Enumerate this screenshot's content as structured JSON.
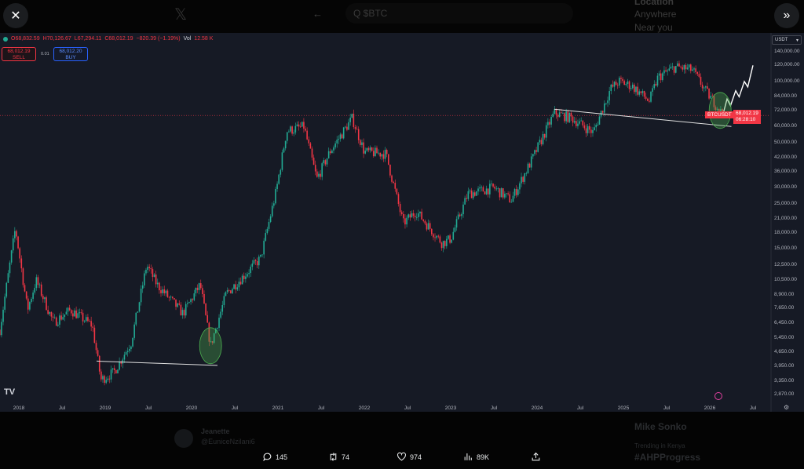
{
  "background": {
    "search": "Q $BTC",
    "location": "Location",
    "anywhere": "Anywhere",
    "near_you": "Near you",
    "user_name": "Jeanette",
    "user_handle": "@EuniceNzilani6",
    "trend_person": "Mike Sonko",
    "trending_label": "Trending in Kenya",
    "trending_tag": "#AHPProgress"
  },
  "chart_header": {
    "o": "O68,832.59",
    "h": "H70,126.67",
    "l": "L67,294.11",
    "c": "C68,012.19",
    "change": "−820.39 (−1.19%)",
    "vol_label": "Vol",
    "vol": "12.58 K"
  },
  "trade": {
    "sell_price": "68,012.19",
    "sell_label": "SELL",
    "spread": "0.01",
    "buy_price": "68,012.20",
    "buy_label": "BUY"
  },
  "currency": "USDT",
  "symbol_tag": "BTCUSDT",
  "price_tag": "68,012.19",
  "countdown": "06:28:10",
  "actions": {
    "replies": "145",
    "reposts": "74",
    "likes": "974",
    "views": "89K"
  },
  "chart_data": {
    "type": "candlestick",
    "symbol": "BTCUSDT",
    "scale": "log",
    "current_price": 68012.19,
    "ylim": [
      2600,
      160000
    ],
    "yticks": [
      140000,
      120000,
      100000,
      84000,
      72000,
      60000,
      50000,
      42000,
      36000,
      30000,
      25000,
      21000,
      18000,
      15000,
      12500,
      10500,
      8900,
      7650,
      6450,
      5450,
      4650,
      3950,
      3350,
      2870
    ],
    "ytick_labels": [
      "140,000.00",
      "120,000.00",
      "100,000.00",
      "84,000.00",
      "72,000.00",
      "60,000.00",
      "50,000.00",
      "42,000.00",
      "36,000.00",
      "30,000.00",
      "25,000.00",
      "21,000.00",
      "18,000.00",
      "15,000.00",
      "12,500.00",
      "10,500.00",
      "8,900.00",
      "7,650.00",
      "6,450.00",
      "5,450.00",
      "4,650.00",
      "3,950.00",
      "3,350.00",
      "2,870.00"
    ],
    "xticks": [
      [
        2018,
        "2018"
      ],
      [
        2018.5,
        "Jul"
      ],
      [
        2019,
        "2019"
      ],
      [
        2019.5,
        "Jul"
      ],
      [
        2020,
        "2020"
      ],
      [
        2020.5,
        "Jul"
      ],
      [
        2021,
        "2021"
      ],
      [
        2021.5,
        "Jul"
      ],
      [
        2022,
        "2022"
      ],
      [
        2022.5,
        "Jul"
      ],
      [
        2023,
        "2023"
      ],
      [
        2023.5,
        "Jul"
      ],
      [
        2024,
        "2024"
      ],
      [
        2024.5,
        "Jul"
      ],
      [
        2025,
        "2025"
      ],
      [
        2025.5,
        "Jul"
      ],
      [
        2026,
        "2026"
      ],
      [
        2026.5,
        "Jul"
      ]
    ],
    "price_path": [
      [
        2017.78,
        6000
      ],
      [
        2017.96,
        19000
      ],
      [
        2018.1,
        7500
      ],
      [
        2018.2,
        10500
      ],
      [
        2018.4,
        6500
      ],
      [
        2018.6,
        7500
      ],
      [
        2018.85,
        6300
      ],
      [
        2018.95,
        3400
      ],
      [
        2019.1,
        3700
      ],
      [
        2019.3,
        5200
      ],
      [
        2019.48,
        12500
      ],
      [
        2019.6,
        10000
      ],
      [
        2019.9,
        7200
      ],
      [
        2020.1,
        10000
      ],
      [
        2020.22,
        5000
      ],
      [
        2020.4,
        9000
      ],
      [
        2020.6,
        11000
      ],
      [
        2020.8,
        13500
      ],
      [
        2020.98,
        29000
      ],
      [
        2021.1,
        57000
      ],
      [
        2021.3,
        60000
      ],
      [
        2021.45,
        33000
      ],
      [
        2021.6,
        45000
      ],
      [
        2021.86,
        66000
      ],
      [
        2022.0,
        45000
      ],
      [
        2022.25,
        44000
      ],
      [
        2022.45,
        20000
      ],
      [
        2022.6,
        23000
      ],
      [
        2022.9,
        16000
      ],
      [
        2023.0,
        16800
      ],
      [
        2023.2,
        28000
      ],
      [
        2023.5,
        30000
      ],
      [
        2023.7,
        26000
      ],
      [
        2023.95,
        42000
      ],
      [
        2024.2,
        70000
      ],
      [
        2024.4,
        66000
      ],
      [
        2024.65,
        56000
      ],
      [
        2024.85,
        92000
      ],
      [
        2024.95,
        100000
      ],
      [
        2025.1,
        95000
      ],
      [
        2025.3,
        80000
      ],
      [
        2025.4,
        105000
      ],
      [
        2025.6,
        118000
      ],
      [
        2025.8,
        114000
      ],
      [
        2025.95,
        90000
      ],
      [
        2026.08,
        76000
      ],
      [
        2026.15,
        68012
      ]
    ],
    "projection": [
      [
        2026.15,
        68012
      ],
      [
        2026.2,
        82000
      ],
      [
        2026.24,
        76000
      ],
      [
        2026.3,
        90000
      ],
      [
        2026.34,
        84000
      ],
      [
        2026.4,
        100000
      ],
      [
        2026.44,
        94000
      ],
      [
        2026.5,
        120000
      ]
    ],
    "trendlines": [
      [
        [
          2018.9,
          4200
        ],
        [
          2020.3,
          4000
        ]
      ],
      [
        [
          2024.2,
          73000
        ],
        [
          2026.25,
          60000
        ]
      ]
    ],
    "highlights": [
      [
        2020.22,
        5000
      ],
      [
        2026.12,
        72000
      ]
    ]
  }
}
